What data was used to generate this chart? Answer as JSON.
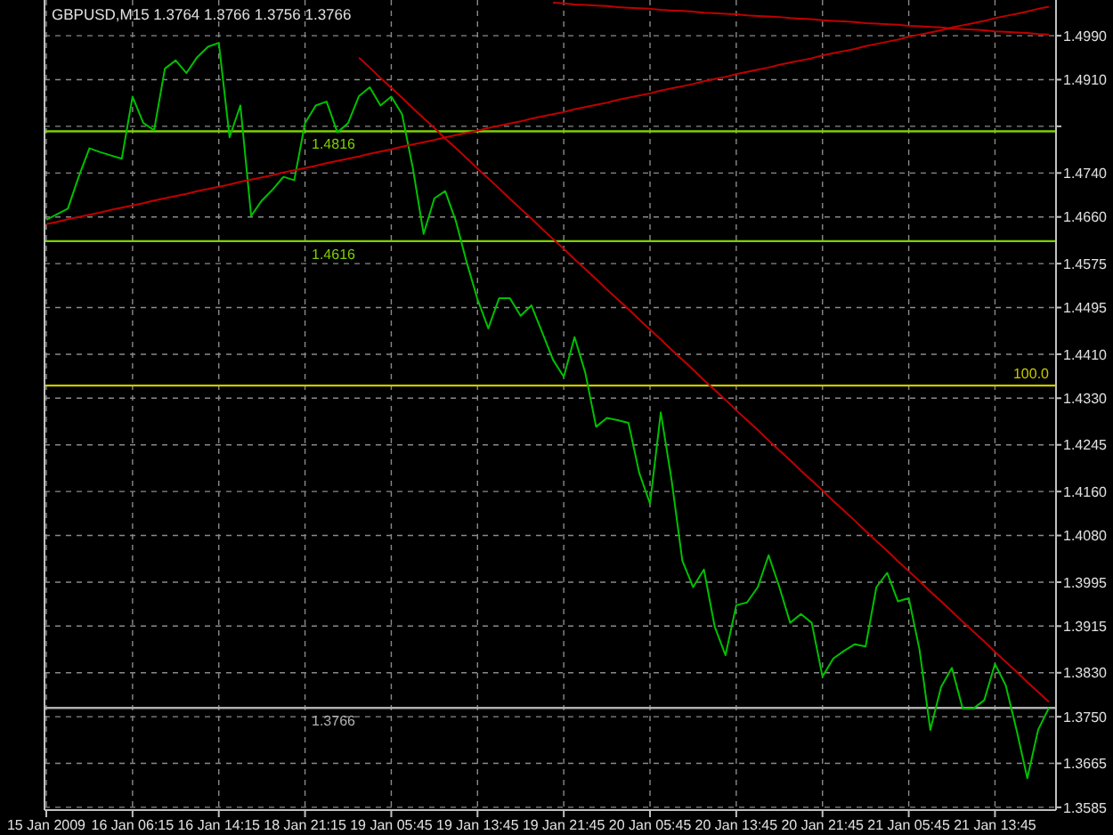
{
  "chart_data": {
    "type": "line",
    "title": "GBPUSD,M15  1.3764 1.3766 1.3756 1.3766",
    "categories": [
      "15 Jan 2009",
      null,
      null,
      null,
      null,
      null,
      null,
      null,
      "16 Jan 06:15",
      null,
      null,
      null,
      null,
      null,
      null,
      null,
      "16 Jan 14:15",
      null,
      null,
      null,
      null,
      null,
      null,
      null,
      "18 Jan 21:15",
      null,
      null,
      null,
      null,
      null,
      null,
      null,
      "19 Jan 05:45",
      null,
      null,
      null,
      null,
      null,
      null,
      null,
      "19 Jan 13:45",
      null,
      null,
      null,
      null,
      null,
      null,
      null,
      "19 Jan 21:45",
      null,
      null,
      null,
      null,
      null,
      null,
      null,
      "20 Jan 05:45",
      null,
      null,
      null,
      null,
      null,
      null,
      null,
      "20 Jan 13:45",
      null,
      null,
      null,
      null,
      null,
      null,
      null,
      "20 Jan 21:45",
      null,
      null,
      null,
      null,
      null,
      null,
      null,
      "21 Jan 05:45",
      null,
      null,
      null,
      null,
      null,
      null,
      null,
      "21 Jan 13:45",
      null,
      null,
      null,
      null,
      null
    ],
    "ylim": [
      1.358,
      1.5055
    ],
    "yticks": [
      {
        "value": 1.499,
        "label": "1.4990"
      },
      {
        "value": 1.491,
        "label": "1.4910"
      },
      {
        "value": 1.4825,
        "label": null
      },
      {
        "value": 1.474,
        "label": "1.4740"
      },
      {
        "value": 1.466,
        "label": "1.4660"
      },
      {
        "value": 1.4575,
        "label": "1.4575"
      },
      {
        "value": 1.4495,
        "label": "1.4495"
      },
      {
        "value": 1.441,
        "label": "1.4410"
      },
      {
        "value": 1.433,
        "label": "1.4330"
      },
      {
        "value": 1.4245,
        "label": "1.4245"
      },
      {
        "value": 1.416,
        "label": "1.4160"
      },
      {
        "value": 1.408,
        "label": "1.4080"
      },
      {
        "value": 1.3995,
        "label": "1.3995"
      },
      {
        "value": 1.3915,
        "label": "1.3915"
      },
      {
        "value": 1.383,
        "label": "1.3830"
      },
      {
        "value": 1.375,
        "label": "1.3750"
      },
      {
        "value": 1.3665,
        "label": "1.3665"
      },
      {
        "value": 1.3585,
        "label": "1.3585"
      }
    ],
    "grid": true,
    "marker": "none",
    "line_style": "solid",
    "ref_lines": [
      {
        "axis": "y",
        "value": 1.4816,
        "label": "1.4816",
        "color": "#7fd000"
      },
      {
        "axis": "y",
        "value": 1.4616,
        "label": "1.4616",
        "color": "#7fd000"
      },
      {
        "axis": "y",
        "value": 1.4353,
        "color": "#c8c800"
      },
      {
        "axis": "y",
        "value": 1.3766,
        "label": "1.3766",
        "color": "#b0b0b0"
      }
    ],
    "annotations": [
      {
        "text": "100.0",
        "y": 1.4353
      }
    ],
    "series": [
      {
        "color": "#00c000",
        "values": [
          1.4655,
          1.4665,
          1.4675,
          1.4733,
          1.4785,
          1.4778,
          1.4772,
          1.4766,
          1.4879,
          1.4831,
          1.4818,
          1.493,
          1.4945,
          1.4922,
          1.4951,
          1.497,
          1.4977,
          1.4805,
          1.4863,
          1.4662,
          1.469,
          1.471,
          1.4733,
          1.4727,
          1.4831,
          1.4863,
          1.487,
          1.4814,
          1.4831,
          1.488,
          1.4896,
          1.4863,
          1.4879,
          1.4847,
          1.4749,
          1.4629,
          1.4694,
          1.4707,
          1.4652,
          1.4577,
          1.451,
          1.4457,
          1.4512,
          1.4512,
          1.448,
          1.4499,
          1.445,
          1.44,
          1.4369,
          1.4441,
          1.4376,
          1.4278,
          1.4294,
          1.429,
          1.4285,
          1.4194,
          1.4138,
          1.4304,
          1.4181,
          1.4034,
          1.3986,
          1.4018,
          1.3914,
          1.3862,
          1.3953,
          1.3958,
          1.3986,
          1.4044,
          1.3986,
          1.3921,
          1.3937,
          1.3921,
          1.3823,
          1.3856,
          1.387,
          1.3882,
          1.3878,
          1.3986,
          1.4012,
          1.396,
          1.3966,
          1.3872,
          1.3726,
          1.3804,
          1.3839,
          1.3765,
          1.3765,
          1.378,
          1.3846,
          1.3807,
          1.3726,
          1.3638,
          1.3726,
          1.3766
        ]
      },
      {
        "type": "line",
        "color": "#c00000",
        "values": [
          null,
          null,
          null,
          null,
          null,
          null,
          null,
          null,
          null,
          null,
          null,
          null,
          null,
          null,
          null,
          null,
          null,
          null,
          null,
          null,
          null,
          null,
          null,
          null,
          null,
          null,
          null,
          null,
          null,
          1.495,
          1.4932,
          1.4913,
          1.4895,
          1.4877,
          1.4858,
          1.484,
          1.4822,
          1.4803,
          1.4785,
          1.4767,
          1.4748,
          1.473,
          1.4712,
          1.4693,
          1.4675,
          1.4657,
          1.4638,
          1.462,
          1.4602,
          1.4583,
          1.4565,
          1.4547,
          1.4528,
          1.451,
          1.4492,
          1.4473,
          1.4455,
          1.4437,
          1.4418,
          1.44,
          1.4382,
          1.4363,
          1.4345,
          1.4327,
          1.4308,
          1.429,
          1.4272,
          1.4253,
          1.4235,
          1.4217,
          1.4198,
          1.418,
          1.4162,
          1.4143,
          1.4125,
          1.4107,
          1.4088,
          1.407,
          1.4052,
          1.4033,
          1.4015,
          1.3997,
          1.3978,
          1.396,
          1.3942,
          1.3923,
          1.3905,
          1.3887,
          1.3868,
          1.385,
          1.3832,
          1.3813,
          1.3795,
          1.3777
        ]
      },
      {
        "type": "line",
        "color": "#c00000",
        "values": [
          1.4647,
          1.4651,
          1.4656,
          1.466,
          1.4664,
          1.4668,
          1.4673,
          1.4677,
          1.4681,
          1.4685,
          1.469,
          1.4694,
          1.4698,
          1.4702,
          1.4707,
          1.4711,
          1.4715,
          1.4719,
          1.4724,
          1.4728,
          1.4732,
          1.4736,
          1.4741,
          1.4745,
          1.4749,
          1.4753,
          1.4758,
          1.4762,
          1.4766,
          1.477,
          1.4775,
          1.4779,
          1.4783,
          1.4788,
          1.4792,
          1.4796,
          1.48,
          1.4805,
          1.4809,
          1.4813,
          1.4817,
          1.4822,
          1.4826,
          1.483,
          1.4834,
          1.4839,
          1.4843,
          1.4847,
          1.4851,
          1.4856,
          1.486,
          1.4864,
          1.4868,
          1.4873,
          1.4877,
          1.4881,
          1.4885,
          1.489,
          1.4894,
          1.4898,
          1.4902,
          1.4907,
          1.4911,
          1.4915,
          1.492,
          1.4924,
          1.4928,
          1.4932,
          1.4937,
          1.4941,
          1.4945,
          1.4949,
          1.4954,
          1.4958,
          1.4962,
          1.4966,
          1.4971,
          1.4975,
          1.4979,
          1.4983,
          1.4988,
          1.4992,
          1.4996,
          1.5,
          1.5005,
          1.5009,
          1.5013,
          1.5017,
          1.5022,
          1.5026,
          1.503,
          1.5034,
          1.5039,
          1.5043
        ]
      },
      {
        "type": "line",
        "color": "#c00000",
        "values": [
          null,
          null,
          null,
          null,
          null,
          null,
          null,
          null,
          null,
          null,
          null,
          null,
          null,
          null,
          null,
          null,
          null,
          null,
          null,
          null,
          null,
          null,
          null,
          null,
          null,
          null,
          null,
          null,
          null,
          null,
          null,
          null,
          null,
          null,
          null,
          null,
          null,
          null,
          null,
          null,
          null,
          null,
          null,
          null,
          null,
          null,
          null,
          1.505,
          1.5049,
          1.5047,
          1.5046,
          1.5045,
          1.5044,
          1.5042,
          1.5041,
          1.504,
          1.5039,
          1.5037,
          1.5036,
          1.5035,
          1.5034,
          1.5032,
          1.5031,
          1.503,
          1.5029,
          1.5027,
          1.5026,
          1.5025,
          1.5024,
          1.5022,
          1.5021,
          1.502,
          1.5018,
          1.5017,
          1.5016,
          1.5015,
          1.5013,
          1.5012,
          1.5011,
          1.501,
          1.5008,
          1.5007,
          1.5006,
          1.5005,
          1.5003,
          1.5002,
          1.5001,
          1.5,
          1.4998,
          1.4997,
          1.4996,
          1.4995,
          1.4993,
          1.4992
        ]
      }
    ]
  }
}
